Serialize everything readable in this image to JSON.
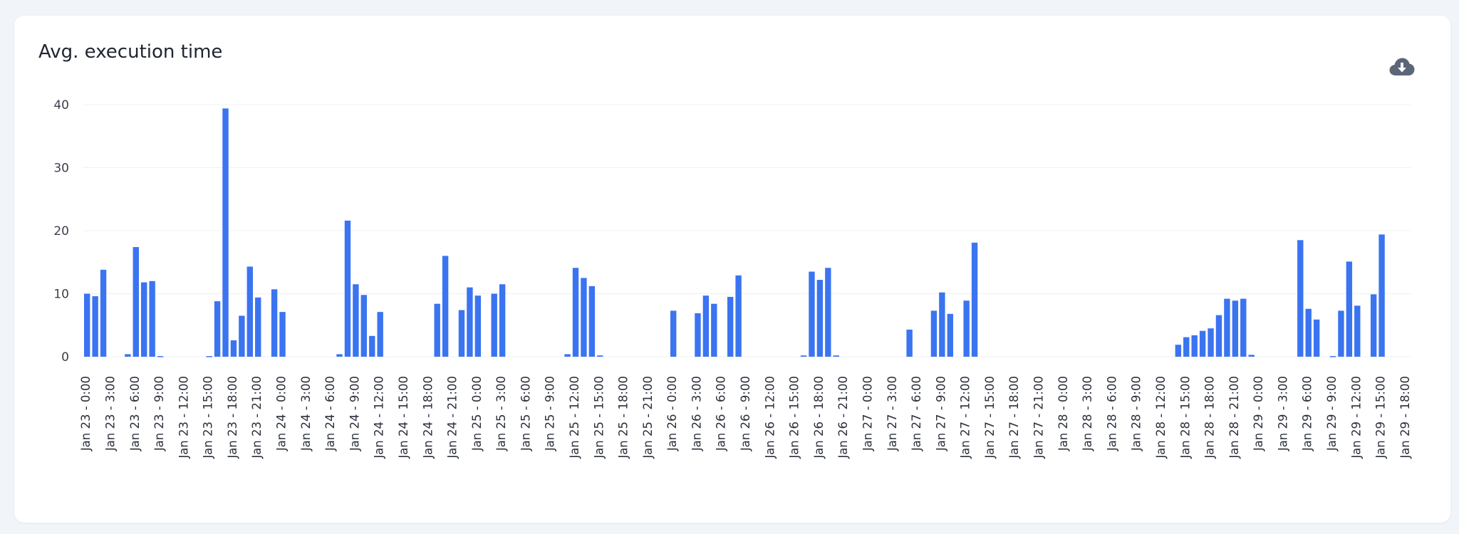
{
  "card": {
    "title": "Avg. execution time",
    "download_icon": "cloud-download-icon"
  },
  "colors": {
    "bar": "#3b74f0",
    "grid": "#edf0f4",
    "axis_text": "#3a3f4b",
    "icon": "#5b6778"
  },
  "chart_data": {
    "type": "bar",
    "title": "Avg. execution time",
    "xlabel": "",
    "ylabel": "",
    "ylim": [
      0,
      40
    ],
    "y_ticks": [
      0,
      10,
      20,
      30,
      40
    ],
    "grid": true,
    "legend": "none",
    "x_tick_labels": [
      "Jan 23 - 0:00",
      "Jan 23 - 3:00",
      "Jan 23 - 6:00",
      "Jan 23 - 9:00",
      "Jan 23 - 12:00",
      "Jan 23 - 15:00",
      "Jan 23 - 18:00",
      "Jan 23 - 21:00",
      "Jan 24 - 0:00",
      "Jan 24 - 3:00",
      "Jan 24 - 6:00",
      "Jan 24 - 9:00",
      "Jan 24 - 12:00",
      "Jan 24 - 15:00",
      "Jan 24 - 18:00",
      "Jan 24 - 21:00",
      "Jan 25 - 0:00",
      "Jan 25 - 3:00",
      "Jan 25 - 6:00",
      "Jan 25 - 9:00",
      "Jan 25 - 12:00",
      "Jan 25 - 15:00",
      "Jan 25 - 18:00",
      "Jan 25 - 21:00",
      "Jan 26 - 0:00",
      "Jan 26 - 3:00",
      "Jan 26 - 6:00",
      "Jan 26 - 9:00",
      "Jan 26 - 12:00",
      "Jan 26 - 15:00",
      "Jan 26 - 18:00",
      "Jan 26 - 21:00",
      "Jan 27 - 0:00",
      "Jan 27 - 3:00",
      "Jan 27 - 6:00",
      "Jan 27 - 9:00",
      "Jan 27 - 12:00",
      "Jan 27 - 15:00",
      "Jan 27 - 18:00",
      "Jan 27 - 21:00",
      "Jan 28 - 0:00",
      "Jan 28 - 3:00",
      "Jan 28 - 6:00",
      "Jan 28 - 9:00",
      "Jan 28 - 12:00",
      "Jan 28 - 15:00",
      "Jan 28 - 18:00",
      "Jan 28 - 21:00",
      "Jan 29 - 0:00",
      "Jan 29 - 3:00",
      "Jan 29 - 6:00",
      "Jan 29 - 9:00",
      "Jan 29 - 12:00",
      "Jan 29 - 15:00",
      "Jan 29 - 18:00"
    ],
    "hours_per_tick": 3,
    "series": [
      {
        "values": [
          10,
          9.6,
          13.8,
          0,
          0,
          0.4,
          17.4,
          11.8,
          12,
          0.1,
          0,
          0,
          0,
          0,
          0,
          0.1,
          8.8,
          39.4,
          2.6,
          6.5,
          14.3,
          9.4,
          0,
          10.7,
          7.1,
          0,
          0,
          0,
          0,
          0,
          0,
          0.4,
          21.6,
          11.5,
          9.8,
          3.3,
          7.1,
          0,
          0,
          0,
          0,
          0,
          0,
          8.4,
          16,
          0,
          7.4,
          11,
          9.7,
          0,
          10,
          11.5,
          0,
          0,
          0,
          0,
          0,
          0,
          0,
          0.4,
          14.1,
          12.5,
          11.2,
          0.2,
          0,
          0,
          0,
          0,
          0,
          0,
          0,
          0,
          7.3,
          0,
          0,
          6.9,
          9.7,
          8.4,
          0,
          9.5,
          12.9,
          0,
          0,
          0,
          0,
          0,
          0,
          0,
          0.2,
          13.5,
          12.2,
          14.1,
          0.2,
          0,
          0,
          0,
          0,
          0,
          0,
          0,
          0,
          4.3,
          0,
          0,
          7.3,
          10.2,
          6.8,
          0,
          8.9,
          18.1,
          0,
          0,
          0,
          0,
          0,
          0,
          0,
          0,
          0,
          0,
          0,
          0,
          0,
          0,
          0,
          0,
          0,
          0,
          0,
          0,
          0,
          0,
          0,
          0,
          1.9,
          3.1,
          3.4,
          4.1,
          4.5,
          6.6,
          9.2,
          8.9,
          9.2,
          0.3,
          0,
          0,
          0,
          0,
          0,
          18.5,
          7.6,
          5.9,
          0,
          0.1,
          7.3,
          15.1,
          8.1,
          0,
          9.9,
          19.4,
          0,
          0,
          0,
          0,
          0,
          0,
          0,
          0,
          0,
          0,
          0,
          0,
          0,
          0,
          0,
          0,
          0,
          0,
          0,
          0,
          0,
          0
        ]
      }
    ]
  }
}
